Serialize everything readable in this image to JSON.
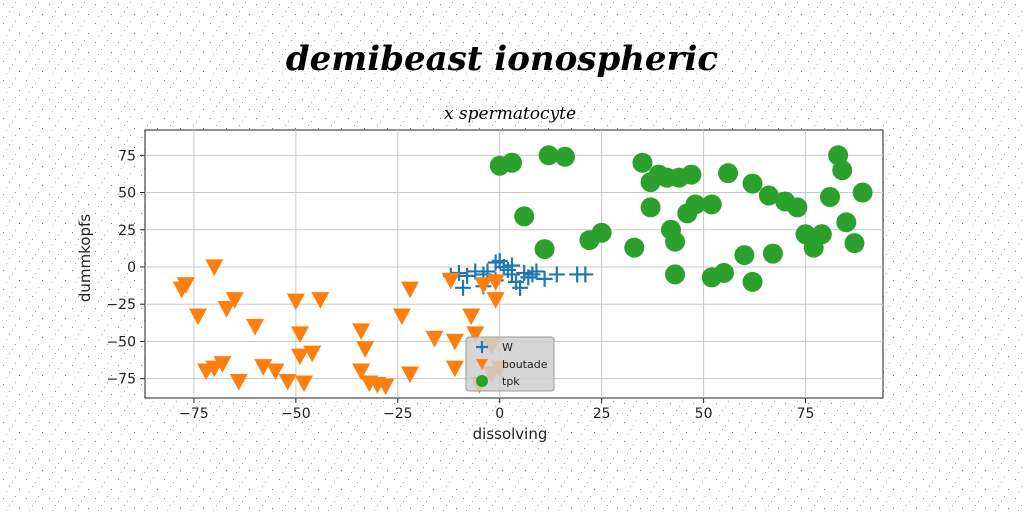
{
  "chart_data": {
    "type": "scatter",
    "title": "demibeast ionospheric",
    "subtitle": "x spermatocyte",
    "xlabel": "dissolving",
    "ylabel": "dummkopfs",
    "xlim": [
      -87,
      94
    ],
    "ylim": [
      -88,
      92
    ],
    "xticks": [
      -75,
      -50,
      -25,
      0,
      25,
      50,
      75
    ],
    "yticks": [
      -75,
      -50,
      -25,
      0,
      25,
      50,
      75
    ],
    "xtick_labels": [
      "−75",
      "−50",
      "−25",
      "0",
      "25",
      "50",
      "75"
    ],
    "ytick_labels": [
      "−75",
      "−50",
      "−25",
      "0",
      "25",
      "50",
      "75"
    ],
    "grid": true,
    "legend": "bottom-center",
    "series": [
      {
        "name": "W",
        "marker": "plus",
        "color": "#1f77b4",
        "points": [
          [
            -1,
            3
          ],
          [
            0,
            4
          ],
          [
            1,
            0
          ],
          [
            2,
            -2
          ],
          [
            3,
            1
          ],
          [
            -3,
            -3
          ],
          [
            -4,
            -5
          ],
          [
            -6,
            -3
          ],
          [
            -8,
            -6
          ],
          [
            -9,
            -14
          ],
          [
            -10,
            -4
          ],
          [
            -12,
            -6
          ],
          [
            -4,
            -13
          ],
          [
            4,
            -10
          ],
          [
            5,
            -14
          ],
          [
            6,
            -4
          ],
          [
            7,
            -7
          ],
          [
            8,
            -5
          ],
          [
            9,
            -3
          ],
          [
            11,
            -8
          ],
          [
            14,
            -5
          ],
          [
            19,
            -5
          ],
          [
            21,
            -5
          ],
          [
            -1,
            -9
          ],
          [
            3,
            -5
          ]
        ]
      },
      {
        "name": "boutade",
        "marker": "triangle-down",
        "color": "#ff7f0e",
        "points": [
          [
            -77,
            -12
          ],
          [
            -78,
            -15
          ],
          [
            -74,
            -33
          ],
          [
            -70,
            0
          ],
          [
            -67,
            -28
          ],
          [
            -65,
            -22
          ],
          [
            -60,
            -40
          ],
          [
            -55,
            -70
          ],
          [
            -50,
            -23
          ],
          [
            -49,
            -45
          ],
          [
            -49,
            -60
          ],
          [
            -46,
            -58
          ],
          [
            -44,
            -22
          ],
          [
            -72,
            -70
          ],
          [
            -70,
            -68
          ],
          [
            -68,
            -65
          ],
          [
            -64,
            -77
          ],
          [
            -58,
            -67
          ],
          [
            -52,
            -77
          ],
          [
            -48,
            -78
          ],
          [
            -34,
            -43
          ],
          [
            -33,
            -55
          ],
          [
            -34,
            -70
          ],
          [
            -32,
            -78
          ],
          [
            -30,
            -79
          ],
          [
            -28,
            -80
          ],
          [
            -24,
            -33
          ],
          [
            -22,
            -15
          ],
          [
            -22,
            -72
          ],
          [
            -16,
            -48
          ],
          [
            -12,
            -9
          ],
          [
            -11,
            -50
          ],
          [
            -11,
            -68
          ],
          [
            -7,
            -33
          ],
          [
            -6,
            -45
          ],
          [
            -4,
            -12
          ],
          [
            -1,
            -10
          ],
          [
            -1,
            -22
          ],
          [
            -2,
            -53
          ],
          [
            -2,
            -72
          ],
          [
            0,
            -68
          ],
          [
            -5,
            -79
          ]
        ]
      },
      {
        "name": "tpk",
        "marker": "circle",
        "color": "#2ca02c",
        "points": [
          [
            0,
            68
          ],
          [
            3,
            70
          ],
          [
            12,
            75
          ],
          [
            16,
            74
          ],
          [
            6,
            34
          ],
          [
            11,
            12
          ],
          [
            22,
            18
          ],
          [
            25,
            23
          ],
          [
            33,
            13
          ],
          [
            35,
            70
          ],
          [
            37,
            57
          ],
          [
            39,
            62
          ],
          [
            41,
            60
          ],
          [
            44,
            60
          ],
          [
            47,
            62
          ],
          [
            37,
            40
          ],
          [
            42,
            25
          ],
          [
            43,
            17
          ],
          [
            46,
            36
          ],
          [
            48,
            42
          ],
          [
            52,
            42
          ],
          [
            56,
            63
          ],
          [
            62,
            56
          ],
          [
            66,
            48
          ],
          [
            70,
            44
          ],
          [
            73,
            40
          ],
          [
            75,
            22
          ],
          [
            77,
            13
          ],
          [
            79,
            22
          ],
          [
            81,
            47
          ],
          [
            83,
            75
          ],
          [
            84,
            65
          ],
          [
            85,
            30
          ],
          [
            87,
            16
          ],
          [
            89,
            50
          ],
          [
            43,
            -5
          ],
          [
            52,
            -7
          ],
          [
            55,
            -4
          ],
          [
            60,
            8
          ],
          [
            62,
            -10
          ],
          [
            67,
            9
          ]
        ]
      }
    ]
  }
}
